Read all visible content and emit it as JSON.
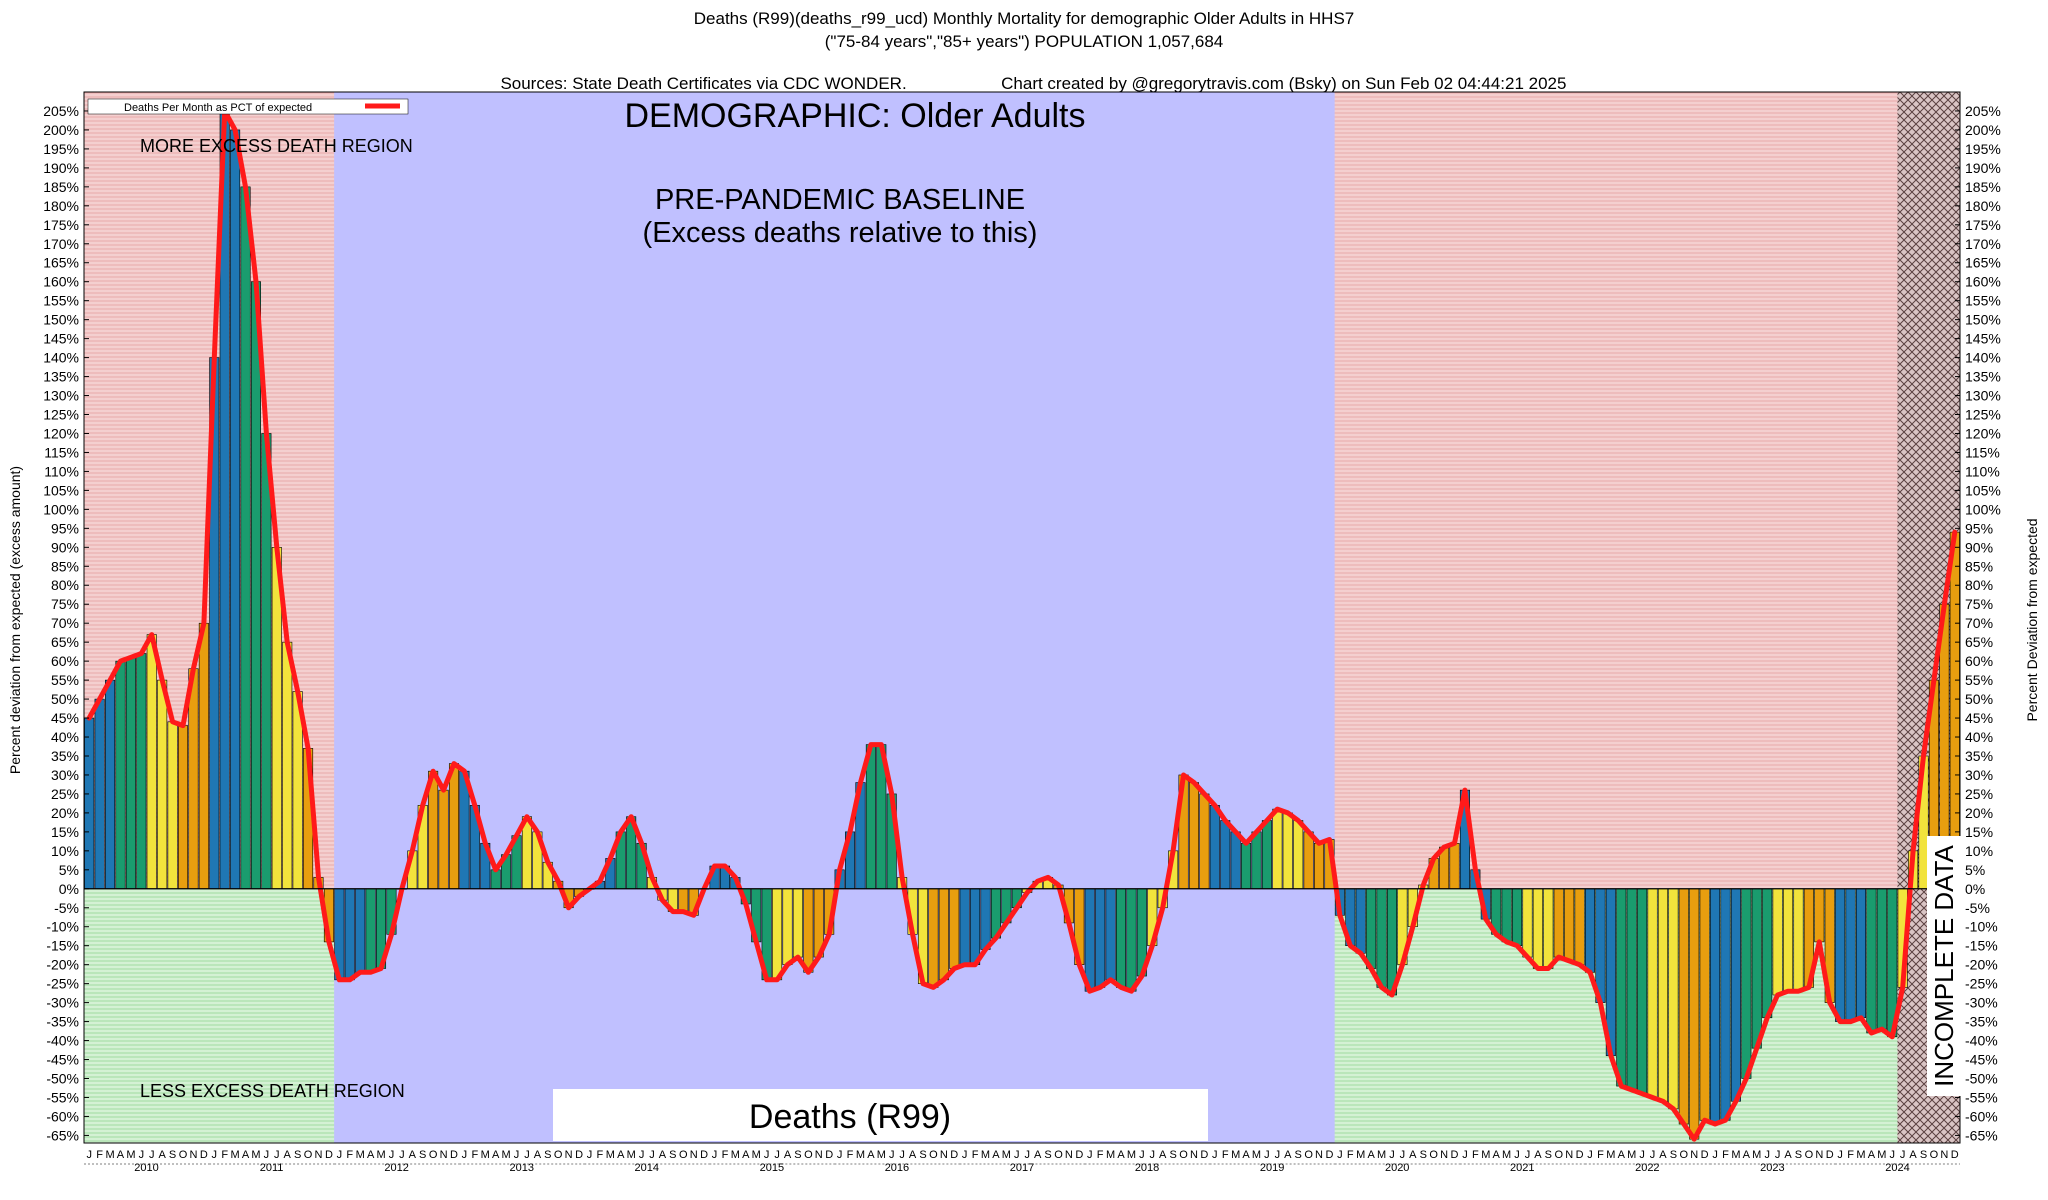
{
  "title": {
    "line1": "Deaths (R99)(deaths_r99_ucd) Monthly Mortality for demographic Older Adults in HHS7",
    "line2": "(\"75-84 years\",\"85+ years\") POPULATION 1,057,684",
    "line3_left": "Sources: State Death Certificates via CDC WONDER.",
    "line3_right": "Chart created by @gregorytravis.com (Bsky) on Sun Feb 02 04:44:21 2025"
  },
  "annotations": {
    "demographic": "DEMOGRAPHIC: Older Adults",
    "baseline_line1": "PRE-PANDEMIC BASELINE",
    "baseline_line2": "(Excess deaths relative to this)",
    "more_region": "MORE EXCESS DEATH REGION",
    "less_region": "LESS EXCESS DEATH REGION",
    "cause_label": "Deaths (R99)",
    "incomplete": "INCOMPLETE DATA"
  },
  "colors": {
    "more_region": "#f2c9c9",
    "less_region": "#cdeecd",
    "baseline_region": "#c0c0ff",
    "line": "#ff1a1a",
    "bar_blue": "#1f77b4",
    "bar_green": "#1a9c6e",
    "bar_yellow": "#f2e33c",
    "bar_orange": "#e89e0f",
    "incomplete_hatch": "#b89a9a"
  },
  "chart_data": {
    "type": "bar",
    "title": "Deaths (R99)(deaths_r99_ucd) Monthly Mortality for demographic Older Adults in HHS7",
    "ylabel": "Percent deviation from expected (excess amount)",
    "ylabel_right": "Percent Deviation from expected",
    "ylim": [
      -67,
      210
    ],
    "ytick_step": 5,
    "legend": {
      "label": "Deaths Per Month as PCT of expected",
      "placement": "top-left"
    },
    "month_letters": [
      "J",
      "F",
      "M",
      "A",
      "M",
      "J",
      "J",
      "A",
      "S",
      "O",
      "N",
      "D"
    ],
    "years": [
      "2010",
      "2011",
      "2012",
      "2013",
      "2014",
      "2015",
      "2016",
      "2017",
      "2018",
      "2019",
      "2020",
      "2021",
      "2022",
      "2023",
      "2024"
    ],
    "baseline_years": [
      "2012",
      "2013",
      "2014",
      "2015",
      "2016",
      "2017",
      "2018",
      "2019"
    ],
    "incomplete_from": "2024-07",
    "series": [
      {
        "name": "Deaths Per Month as PCT of expected",
        "start": "2010-01",
        "values": [
          45,
          50,
          55,
          60,
          61,
          62,
          67,
          55,
          44,
          43,
          58,
          70,
          140,
          205,
          200,
          185,
          160,
          120,
          90,
          65,
          52,
          37,
          3,
          -14,
          -24,
          -24,
          -22,
          -22,
          -21,
          -12,
          0,
          10,
          22,
          31,
          26,
          33,
          31,
          22,
          12,
          5,
          9,
          14,
          19,
          15,
          7,
          2,
          -5,
          -2,
          0,
          2,
          8,
          15,
          19,
          12,
          3,
          -3,
          -6,
          -6,
          -7,
          0,
          6,
          6,
          3,
          -4,
          -14,
          -24,
          -24,
          -20,
          -18,
          -22,
          -18,
          -12,
          5,
          15,
          28,
          38,
          38,
          25,
          3,
          -12,
          -25,
          -26,
          -24,
          -21,
          -20,
          -20,
          -16,
          -13,
          -9,
          -5,
          -1,
          2,
          3,
          1,
          -9,
          -20,
          -27,
          -26,
          -24,
          -26,
          -27,
          -23,
          -15,
          -5,
          10,
          30,
          28,
          25,
          22,
          18,
          15,
          12,
          15,
          18,
          21,
          20,
          18,
          15,
          12,
          13,
          -7,
          -15,
          -17,
          -21,
          -26,
          -28,
          -20,
          -10,
          1,
          8,
          11,
          12,
          26,
          5,
          -8,
          -12,
          -14,
          -15,
          -18,
          -21,
          -21,
          -18,
          -19,
          -20,
          -22,
          -30,
          -44,
          -52,
          -53,
          -54,
          -55,
          -56,
          -58,
          -62,
          -66,
          -61,
          -62,
          -61,
          -56,
          -50,
          -42,
          -34,
          -28,
          -27,
          -27,
          -26,
          -14,
          -30,
          -35,
          -35,
          -34,
          -38,
          -37,
          -39,
          -26,
          10,
          35,
          55,
          75,
          94
        ]
      }
    ]
  }
}
